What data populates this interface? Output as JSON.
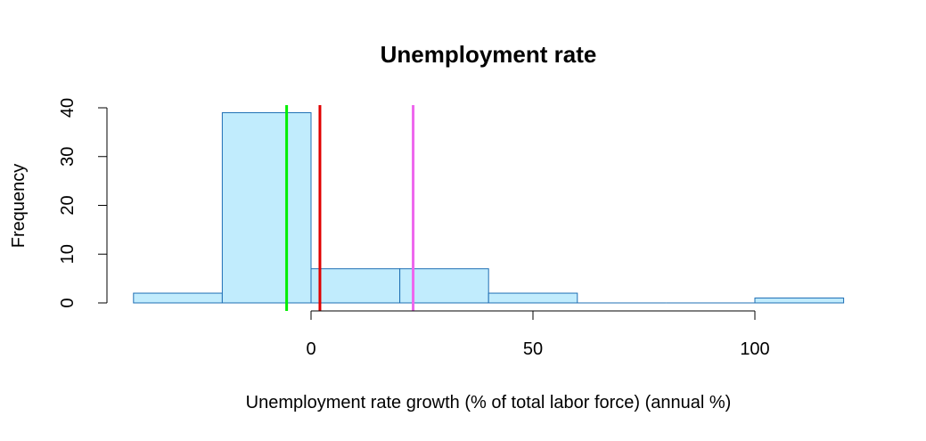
{
  "chart_data": {
    "type": "histogram",
    "title": "Unemployment rate",
    "xlabel": "Unemployment rate growth (% of total labor force) (annual %)",
    "ylabel": "Frequency",
    "xlim": [
      -40,
      120
    ],
    "ylim": [
      0,
      40
    ],
    "x_ticks": [
      0,
      50,
      100
    ],
    "y_ticks": [
      0,
      10,
      20,
      30,
      40
    ],
    "grid": false,
    "bar_color": "#c1ecfd",
    "bar_border_color": "#1f6fb4",
    "bins": [
      {
        "start": -40,
        "end": -20,
        "count": 2
      },
      {
        "start": -20,
        "end": 0,
        "count": 39
      },
      {
        "start": 0,
        "end": 20,
        "count": 7
      },
      {
        "start": 20,
        "end": 40,
        "count": 7
      },
      {
        "start": 40,
        "end": 60,
        "count": 2
      },
      {
        "start": 60,
        "end": 80,
        "count": 0
      },
      {
        "start": 80,
        "end": 100,
        "count": 0
      },
      {
        "start": 100,
        "end": 120,
        "count": 1
      }
    ],
    "vertical_lines": [
      {
        "x": -5.5,
        "color": "#00ee00"
      },
      {
        "x": 2,
        "color": "#e00000"
      },
      {
        "x": 23,
        "color": "#ee66ee"
      }
    ]
  }
}
